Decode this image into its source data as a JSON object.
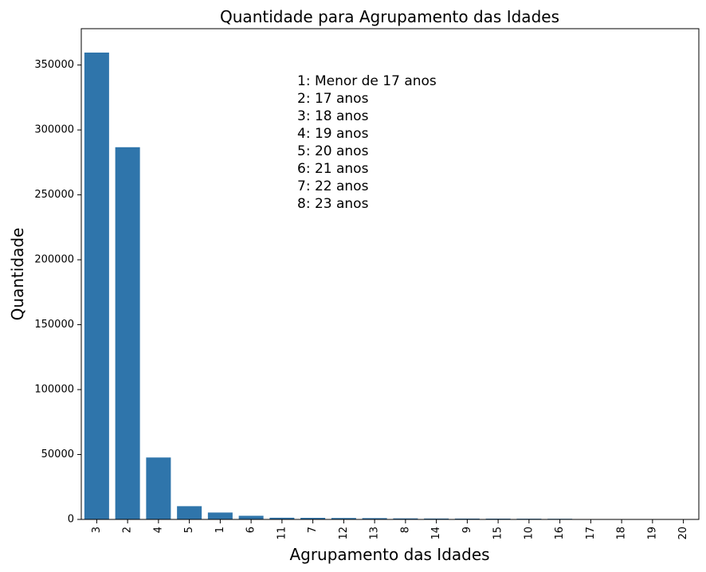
{
  "chart_data": {
    "type": "bar",
    "title": "Quantidade para Agrupamento das Idades",
    "xlabel": "Agrupamento das Idades",
    "ylabel": "Quantidade",
    "categories": [
      "3",
      "2",
      "4",
      "5",
      "1",
      "6",
      "11",
      "7",
      "12",
      "13",
      "8",
      "14",
      "9",
      "15",
      "10",
      "16",
      "17",
      "18",
      "19",
      "20"
    ],
    "values": [
      359600,
      286700,
      47700,
      10200,
      5300,
      2800,
      1300,
      1200,
      1100,
      1000,
      800,
      700,
      650,
      600,
      550,
      500,
      200,
      150,
      100,
      50
    ],
    "ylim": [
      0,
      378000
    ],
    "yticks": [
      0,
      50000,
      100000,
      150000,
      200000,
      250000,
      300000,
      350000
    ],
    "bar_color": "#2f75ab",
    "grid": false,
    "annotation_lines": [
      "1: Menor de 17 anos",
      "2: 17 anos",
      "3: 18 anos",
      "4: 19 anos",
      "5: 20 anos",
      "6: 21 anos",
      "7: 22 anos",
      "8: 23 anos"
    ]
  }
}
